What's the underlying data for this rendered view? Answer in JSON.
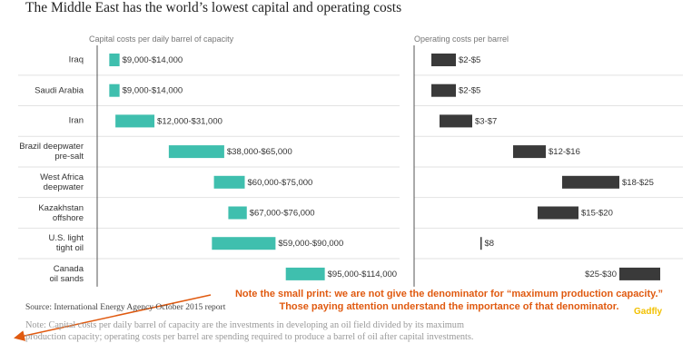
{
  "chart_data": {
    "type": "range_bar",
    "title": "The Middle East has the world’s lowest capital and operating costs",
    "categories": [
      "Iraq",
      "Saudi Arabia",
      "Iran",
      "Brazil deepwater\npre-salt",
      "West Africa\ndeepwater",
      "Kazakhstan\noffshore",
      "U.S. light\ntight oil",
      "Canada\noil sands"
    ],
    "panels": [
      {
        "title": "Capital costs per daily barrel of capacity",
        "color": "#3fbfae",
        "xlim": [
          0,
          150000
        ],
        "low": [
          9000,
          9000,
          12000,
          38000,
          60000,
          67000,
          59000,
          95000
        ],
        "high": [
          14000,
          14000,
          31000,
          65000,
          75000,
          76000,
          90000,
          114000
        ],
        "value_labels": [
          "$9,000-$14,000",
          "$9,000-$14,000",
          "$12,000-$31,000",
          "$38,000-$65,000",
          "$60,000-$75,000",
          "$67,000-$76,000",
          "$59,000-$90,000",
          "$95,000-$114,000"
        ]
      },
      {
        "title": "Operating costs per barrel",
        "color": "#3a3a3a",
        "xlim": [
          0,
          31
        ],
        "low": [
          2,
          2,
          3,
          12,
          18,
          15,
          8,
          25
        ],
        "high": [
          5,
          5,
          7,
          16,
          25,
          20,
          8,
          30
        ],
        "value_labels": [
          "$2-$5",
          "$2-$5",
          "$3-$7",
          "$12-$16",
          "$18-$25",
          "$15-$20",
          "$8",
          "$25-$30"
        ]
      }
    ],
    "source": "Source: International Energy Agency October 2015 report",
    "note": "Note: Capital costs per daily barrel of capacity are the investments in developing an oil field divided by its maximum\nproduction capacity; operating costs per barrel are spending required to produce a barrel of oil after capital investments.",
    "annotation": "Note the small  print: we are not give the denominator for “maximum production capacity.”\nThose paying attention understand the importance of that denominator.",
    "logo": "Gadfly"
  }
}
